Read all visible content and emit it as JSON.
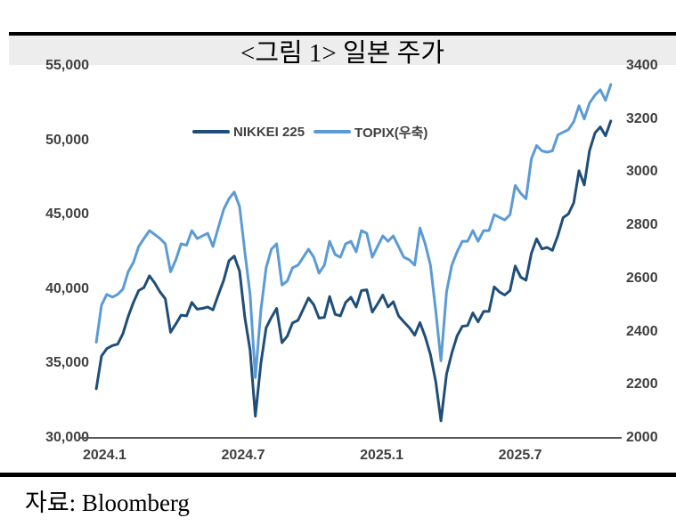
{
  "figure": {
    "title": "<그림 1> 일본 주가",
    "source": "자료: Bloomberg"
  },
  "chart_data": {
    "type": "line",
    "title": "<그림 1> 일본 주가",
    "grid": false,
    "legend_position": "top-center-inside",
    "x_axis": {
      "range": [
        2024.0,
        2025.89
      ],
      "ticks": [
        2024.04,
        2024.54,
        2025.04,
        2025.54
      ],
      "tick_labels": [
        "2024.1",
        "2024.7",
        "2025.1",
        "2025.7"
      ]
    },
    "y_axis_left": {
      "series": "NIKKEI 225",
      "range": [
        30000,
        55000
      ],
      "tick_values": [
        55000,
        50000,
        45000,
        40000,
        35000,
        30000
      ],
      "tick_labels": [
        "55,000",
        "50,000",
        "45,000",
        "40,000",
        "35,000",
        "30,000"
      ]
    },
    "y_axis_right": {
      "series": "TOPIX",
      "range": [
        2000,
        3400
      ],
      "tick_values": [
        3400,
        3200,
        3000,
        2800,
        2600,
        2400,
        2200,
        2000
      ],
      "tick_labels": [
        "3400",
        "3200",
        "3000",
        "2800",
        "2600",
        "2400",
        "2200",
        "2000"
      ]
    },
    "x": [
      2024.01,
      2024.029,
      2024.048,
      2024.068,
      2024.087,
      2024.106,
      2024.125,
      2024.144,
      2024.163,
      2024.182,
      2024.202,
      2024.221,
      2024.24,
      2024.259,
      2024.278,
      2024.297,
      2024.316,
      2024.336,
      2024.355,
      2024.374,
      2024.393,
      2024.412,
      2024.431,
      2024.45,
      2024.47,
      2024.489,
      2024.508,
      2024.527,
      2024.546,
      2024.565,
      2024.584,
      2024.604,
      2024.623,
      2024.642,
      2024.661,
      2024.68,
      2024.699,
      2024.718,
      2024.738,
      2024.757,
      2024.776,
      2024.795,
      2024.814,
      2024.833,
      2024.852,
      2024.872,
      2024.891,
      2024.91,
      2024.929,
      2024.948,
      2024.967,
      2024.986,
      2025.006,
      2025.025,
      2025.044,
      2025.063,
      2025.082,
      2025.101,
      2025.12,
      2025.14,
      2025.159,
      2025.178,
      2025.197,
      2025.216,
      2025.235,
      2025.254,
      2025.274,
      2025.293,
      2025.312,
      2025.331,
      2025.35,
      2025.369,
      2025.388,
      2025.408,
      2025.427,
      2025.446,
      2025.465,
      2025.484,
      2025.503,
      2025.522,
      2025.542,
      2025.561,
      2025.58,
      2025.599,
      2025.618,
      2025.637,
      2025.656,
      2025.676,
      2025.695,
      2025.714,
      2025.733,
      2025.752,
      2025.771,
      2025.79,
      2025.81,
      2025.829,
      2025.848,
      2025.867
    ],
    "series": [
      {
        "name": "NIKKEI 225",
        "axis": "left",
        "color": "#1F4E79",
        "values": [
          33300,
          35500,
          36000,
          36200,
          36300,
          37000,
          38150,
          39100,
          39900,
          40100,
          40890,
          40400,
          39800,
          39350,
          37100,
          37650,
          38250,
          38200,
          39100,
          38650,
          38700,
          38800,
          38600,
          39600,
          40600,
          41900,
          42220,
          41200,
          38100,
          35900,
          31460,
          35000,
          37400,
          38100,
          38700,
          36400,
          36830,
          37720,
          37900,
          38650,
          39400,
          38950,
          38050,
          38100,
          39500,
          38300,
          38200,
          39100,
          39450,
          38800,
          39900,
          39950,
          38450,
          39000,
          39600,
          38800,
          39150,
          38200,
          37800,
          37400,
          36900,
          37750,
          36800,
          35600,
          33800,
          31140,
          34300,
          35700,
          36850,
          37500,
          37550,
          38400,
          37800,
          38500,
          38500,
          40150,
          39800,
          39600,
          39900,
          41550,
          40800,
          40600,
          42400,
          43380,
          42700,
          42800,
          42600,
          43600,
          44800,
          45050,
          45800,
          47950,
          47000,
          49300,
          50500,
          50900,
          50300,
          51300
        ]
      },
      {
        "name": "TOPIX(우축)",
        "axis": "right",
        "color": "#5B9BD5",
        "values": [
          2360,
          2500,
          2540,
          2530,
          2540,
          2560,
          2625,
          2660,
          2720,
          2750,
          2780,
          2765,
          2750,
          2730,
          2625,
          2670,
          2730,
          2725,
          2780,
          2750,
          2760,
          2770,
          2720,
          2790,
          2860,
          2900,
          2925,
          2870,
          2700,
          2540,
          2227,
          2480,
          2640,
          2710,
          2730,
          2575,
          2590,
          2640,
          2650,
          2680,
          2710,
          2680,
          2620,
          2650,
          2740,
          2690,
          2680,
          2730,
          2740,
          2700,
          2780,
          2770,
          2680,
          2720,
          2760,
          2740,
          2760,
          2720,
          2680,
          2670,
          2650,
          2790,
          2730,
          2650,
          2480,
          2290,
          2550,
          2650,
          2700,
          2740,
          2740,
          2780,
          2740,
          2780,
          2780,
          2840,
          2830,
          2820,
          2840,
          2950,
          2920,
          2900,
          3050,
          3100,
          3080,
          3075,
          3080,
          3140,
          3150,
          3160,
          3190,
          3250,
          3200,
          3260,
          3290,
          3310,
          3270,
          3330
        ]
      }
    ]
  }
}
